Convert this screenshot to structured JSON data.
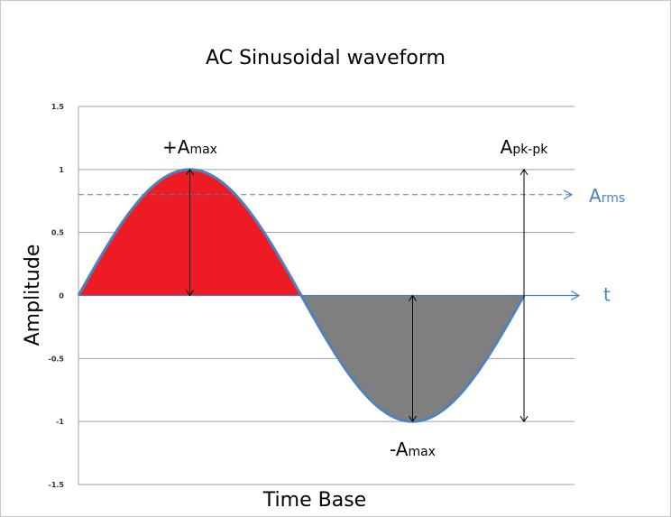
{
  "chart_data": {
    "type": "area",
    "title": "AC Sinusoidal waveform",
    "xlabel": "Time Base",
    "ylabel": "Amplitude",
    "ylim": [
      -1.5,
      1.5
    ],
    "yticks": [
      "1.5",
      "1",
      "0.5",
      "0",
      "-0.5",
      "-1",
      "-1.5"
    ],
    "ytick_values": [
      1.5,
      1,
      0.5,
      0,
      -0.5,
      -1,
      -1.5
    ],
    "grid": true,
    "series": [
      {
        "function": "sine",
        "amplitude": 1,
        "cycles": 1,
        "color": "#4f81bd"
      }
    ],
    "fills": {
      "positive": "#ed1c24",
      "negative": "#7f7f7f"
    },
    "rms_level": 0.8,
    "annotations": {
      "pos_max": {
        "main": "+A",
        "sub": "max"
      },
      "neg_max": {
        "main": "-A",
        "sub": "max"
      },
      "peak_to_peak": {
        "main": "A",
        "sub": "pk-pk"
      },
      "rms": {
        "main": "A",
        "sub": "rms"
      },
      "time_axis": "t"
    },
    "colors": {
      "wave": "#4f81bd",
      "rms_line": "#4f81bd",
      "axis_arrow": "#4f81bd",
      "grid": "#a0a0a0",
      "text": "#000000"
    }
  }
}
